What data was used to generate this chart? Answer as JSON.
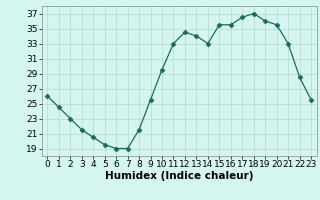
{
  "x": [
    0,
    1,
    2,
    3,
    4,
    5,
    6,
    7,
    8,
    9,
    10,
    11,
    12,
    13,
    14,
    15,
    16,
    17,
    18,
    19,
    20,
    21,
    22,
    23
  ],
  "y": [
    26,
    24.5,
    23,
    21.5,
    20.5,
    19.5,
    19,
    19,
    21.5,
    25.5,
    29.5,
    33,
    34.5,
    34,
    33,
    35.5,
    35.5,
    36.5,
    37,
    36,
    35.5,
    33,
    28.5,
    25.5
  ],
  "line_color": "#1a6b5a",
  "marker": "D",
  "marker_size": 2.5,
  "bg_color": "#d5f5f0",
  "grid_color": "#b8ddd8",
  "xlabel": "Humidex (Indice chaleur)",
  "ylim": [
    18,
    38
  ],
  "xlim": [
    -0.5,
    23.5
  ],
  "yticks": [
    19,
    21,
    23,
    25,
    27,
    29,
    31,
    33,
    35,
    37
  ],
  "xticks": [
    0,
    1,
    2,
    3,
    4,
    5,
    6,
    7,
    8,
    9,
    10,
    11,
    12,
    13,
    14,
    15,
    16,
    17,
    18,
    19,
    20,
    21,
    22,
    23
  ],
  "xtick_labels": [
    "0",
    "1",
    "2",
    "3",
    "4",
    "5",
    "6",
    "7",
    "8",
    "9",
    "10",
    "11",
    "12",
    "13",
    "14",
    "15",
    "16",
    "17",
    "18",
    "19",
    "20",
    "21",
    "22",
    "23"
  ],
  "tick_fontsize": 6.5,
  "xlabel_fontsize": 7.5
}
